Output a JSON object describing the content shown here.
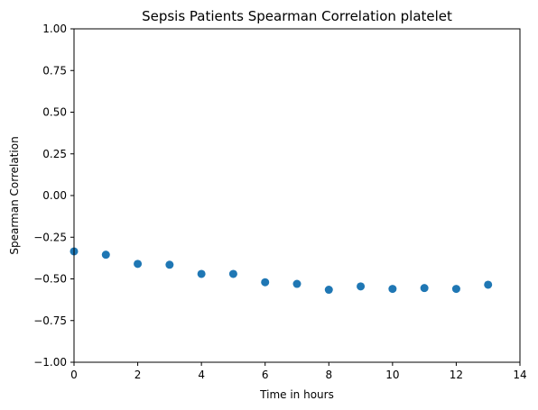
{
  "chart_data": {
    "type": "scatter",
    "title": "Sepsis Patients Spearman Correlation platelet",
    "xlabel": "Time in hours",
    "ylabel": "Spearman Correlation",
    "xlim": [
      0,
      14
    ],
    "ylim": [
      -1.0,
      1.0
    ],
    "x_ticks": [
      0,
      2,
      4,
      6,
      8,
      10,
      12,
      14
    ],
    "x_tick_labels": [
      "0",
      "2",
      "4",
      "6",
      "8",
      "10",
      "12",
      "14"
    ],
    "y_ticks": [
      -1.0,
      -0.75,
      -0.5,
      -0.25,
      0.0,
      0.25,
      0.5,
      0.75,
      1.0
    ],
    "y_tick_labels": [
      "−1.00",
      "−0.75",
      "−0.50",
      "−0.25",
      "0.00",
      "0.25",
      "0.50",
      "0.75",
      "1.00"
    ],
    "grid": false,
    "series": [
      {
        "color": "#1f77b4",
        "x": [
          0,
          1,
          2,
          3,
          4,
          5,
          6,
          7,
          8,
          9,
          10,
          11,
          12,
          13
        ],
        "y": [
          -0.335,
          -0.355,
          -0.41,
          -0.415,
          -0.47,
          -0.47,
          -0.52,
          -0.53,
          -0.565,
          -0.545,
          -0.56,
          -0.555,
          -0.56,
          -0.535
        ]
      }
    ]
  }
}
